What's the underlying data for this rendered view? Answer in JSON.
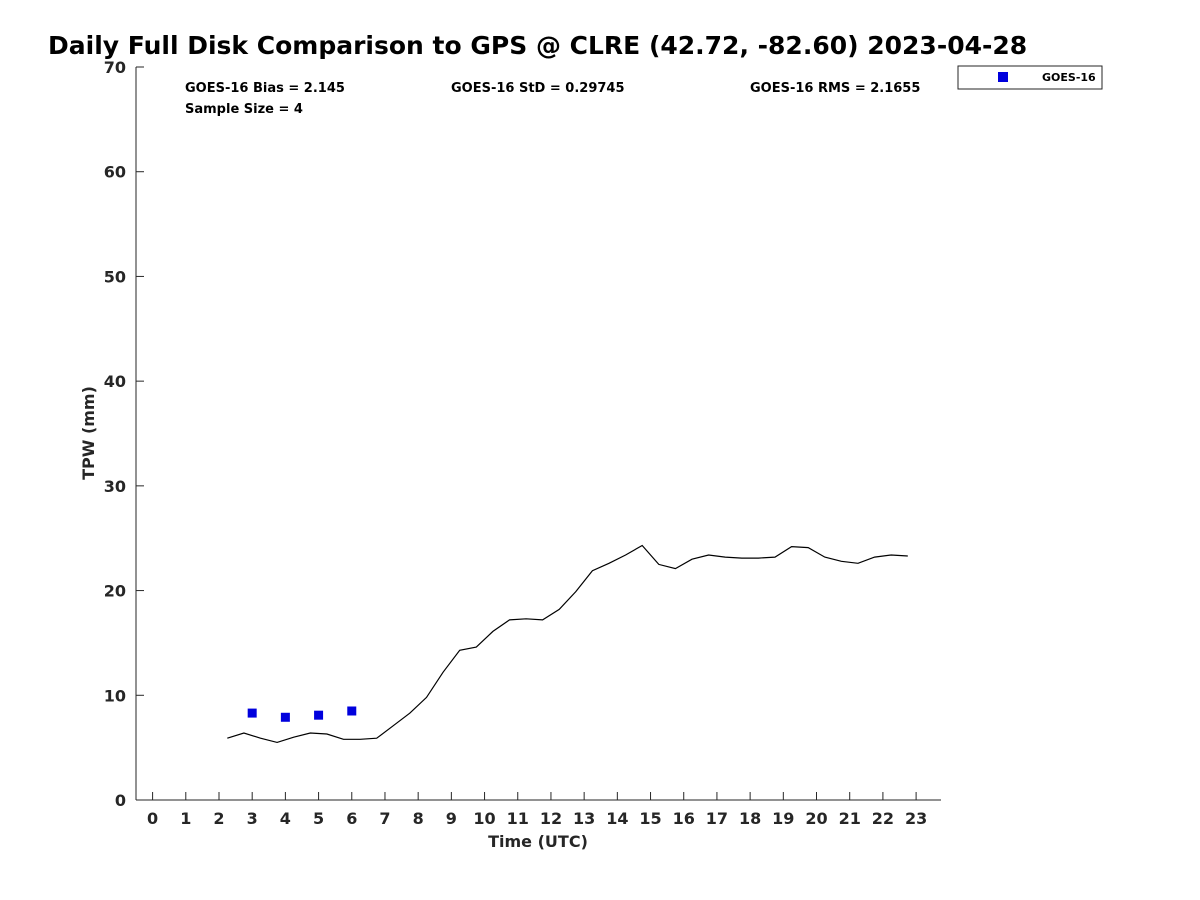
{
  "chart_data": {
    "type": "line",
    "title": "Daily Full Disk Comparison to GPS @ CLRE (42.72, -82.60) 2023-04-28",
    "xlabel": "Time (UTC)",
    "ylabel": "TPW (mm)",
    "xlim": [
      -0.5,
      23.75
    ],
    "ylim": [
      0,
      70
    ],
    "xticks": [
      "0",
      "1",
      "2",
      "3",
      "4",
      "5",
      "6",
      "7",
      "8",
      "9",
      "10",
      "11",
      "12",
      "13",
      "14",
      "15",
      "16",
      "17",
      "18",
      "19",
      "20",
      "21",
      "22",
      "23"
    ],
    "yticks": [
      "0",
      "10",
      "20",
      "30",
      "40",
      "50",
      "60",
      "70"
    ],
    "grid": false,
    "legend_position": "top-right",
    "stats": {
      "bias": "GOES-16 Bias = 2.145",
      "std": "GOES-16 StD = 0.29745",
      "rms": "GOES-16 RMS = 2.1655",
      "sample": "Sample Size = 4"
    },
    "series": [
      {
        "name": "GOES-16",
        "kind": "scatter",
        "marker": "square",
        "color": "#0000dd",
        "x": [
          3.0,
          4.0,
          5.0,
          6.0
        ],
        "y": [
          8.3,
          7.9,
          8.1,
          8.5
        ]
      },
      {
        "kind": "line",
        "color": "#000000",
        "x": [
          2.25,
          2.75,
          3.25,
          3.75,
          4.25,
          4.75,
          5.25,
          5.75,
          6.25,
          6.75,
          7.25,
          7.75,
          8.25,
          8.75,
          9.25,
          9.75,
          10.25,
          10.75,
          11.25,
          11.75,
          12.25,
          12.75,
          13.25,
          13.75,
          14.25,
          14.75,
          15.25,
          15.75,
          16.25,
          16.75,
          17.25,
          17.75,
          18.25,
          18.75,
          19.25,
          19.75,
          20.25,
          20.75,
          21.25,
          21.75,
          22.25,
          22.75
        ],
        "y": [
          5.9,
          6.4,
          5.9,
          5.5,
          6.0,
          6.4,
          6.3,
          5.8,
          5.8,
          5.9,
          7.1,
          8.3,
          9.8,
          12.2,
          14.3,
          14.6,
          16.1,
          17.2,
          17.3,
          17.2,
          18.2,
          19.9,
          21.9,
          22.6,
          23.4,
          24.3,
          22.5,
          22.1,
          23.0,
          23.4,
          23.2,
          23.1,
          23.1,
          23.2,
          24.2,
          24.1,
          23.2,
          22.8,
          22.6,
          23.2,
          23.4,
          23.3
        ]
      }
    ]
  }
}
